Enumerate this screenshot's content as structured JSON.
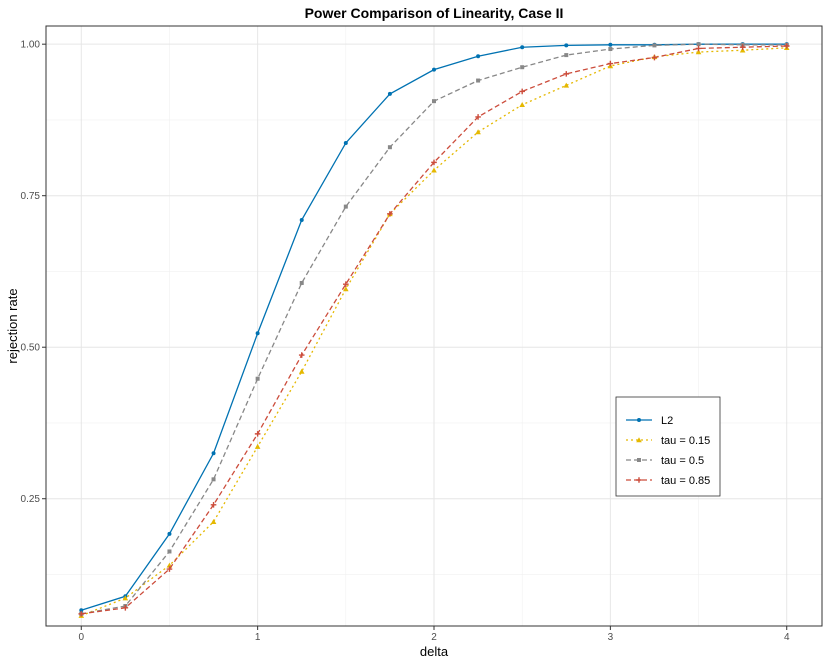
{
  "chart_data": {
    "type": "line",
    "title": "Power Comparison of Linearity, Case II",
    "xlabel": "delta",
    "ylabel": "rejection rate",
    "xlim": [
      -0.2,
      4.2
    ],
    "ylim": [
      0.04,
      1.03
    ],
    "xticks": [
      0,
      1,
      2,
      3,
      4
    ],
    "xtick_labels": [
      "0",
      "1",
      "2",
      "3",
      "4"
    ],
    "yticks": [
      0.25,
      0.5,
      0.75,
      1.0
    ],
    "ytick_labels": [
      "0.25",
      "0.50",
      "0.75",
      "1.00"
    ],
    "grid": true,
    "legend_position": "bottom-right",
    "x": [
      0,
      0.25,
      0.5,
      0.75,
      1,
      1.25,
      1.5,
      1.75,
      2,
      2.25,
      2.5,
      2.75,
      3,
      3.25,
      3.5,
      3.75,
      4
    ],
    "series": [
      {
        "name": "L2",
        "color": "#0072B2",
        "dash": "solid",
        "marker": "dot",
        "values": [
          0.066,
          0.089,
          0.192,
          0.325,
          0.523,
          0.71,
          0.837,
          0.918,
          0.958,
          0.98,
          0.995,
          0.998,
          0.999,
          0.999,
          1.0,
          1.0,
          1.0
        ]
      },
      {
        "name": "tau = 0.15",
        "color": "#E5B800",
        "dash": "dotted",
        "marker": "triangle",
        "values": [
          0.057,
          0.086,
          0.14,
          0.212,
          0.336,
          0.46,
          0.596,
          0.72,
          0.792,
          0.855,
          0.9,
          0.932,
          0.964,
          0.979,
          0.987,
          0.99,
          0.994
        ]
      },
      {
        "name": "tau = 0.5",
        "color": "#888888",
        "dash": "dashed",
        "marker": "square",
        "values": [
          0.06,
          0.073,
          0.163,
          0.282,
          0.448,
          0.606,
          0.732,
          0.83,
          0.906,
          0.94,
          0.962,
          0.982,
          0.992,
          0.998,
          1.0,
          0.999,
          0.999
        ]
      },
      {
        "name": "tau = 0.85",
        "color": "#CC4C3B",
        "dash": "dashed",
        "marker": "cross",
        "values": [
          0.06,
          0.07,
          0.134,
          0.24,
          0.357,
          0.487,
          0.604,
          0.72,
          0.805,
          0.88,
          0.922,
          0.951,
          0.968,
          0.978,
          0.993,
          0.995,
          0.997
        ]
      }
    ]
  }
}
